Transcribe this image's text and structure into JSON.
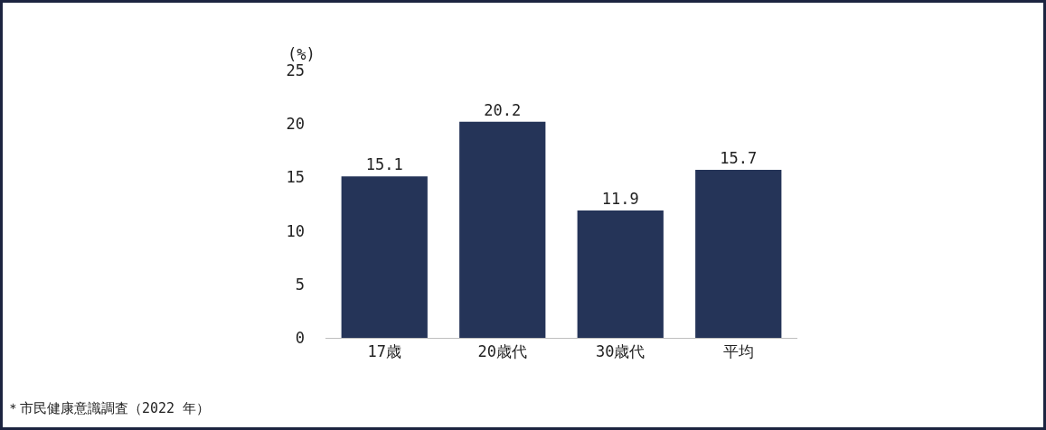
{
  "chart_data": {
    "type": "bar",
    "ylabel": "(%)",
    "categories": [
      "17歳",
      "20歳代",
      "30歳代",
      "平均"
    ],
    "values": [
      15.1,
      20.2,
      11.9,
      15.7
    ],
    "color": "#253458",
    "ylim": [
      0,
      25
    ],
    "yticks": [
      0,
      5,
      10,
      15,
      20,
      25
    ],
    "grid": false,
    "legend": false,
    "data_labels": true,
    "annotations": [
      "＊市民健康意識調査（2022 年）"
    ]
  }
}
